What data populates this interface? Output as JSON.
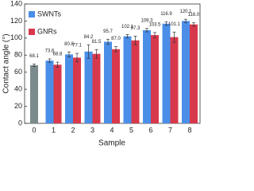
{
  "chart_data": {
    "type": "bar",
    "xlabel": "Sample",
    "ylabel": "Contact angle (°)",
    "categories": [
      "0",
      "1",
      "2",
      "3",
      "4",
      "5",
      "6",
      "7",
      "8"
    ],
    "series": [
      {
        "color": "#7b8b8b",
        "values": [
          68.1,
          null,
          null,
          null,
          null,
          null,
          null,
          null,
          null
        ],
        "errors": [
          1.5,
          null,
          null,
          null,
          null,
          null,
          null,
          null,
          null
        ]
      },
      {
        "name": "SWNTs",
        "color": "#4a8ee8",
        "values": [
          null,
          73.6,
          80.8,
          84.2,
          95.7,
          102.1,
          109.3,
          116.9,
          120.1
        ],
        "errors": [
          null,
          2,
          3,
          8,
          3,
          2,
          2,
          2,
          2
        ]
      },
      {
        "name": "GNRs",
        "color": "#d8384c",
        "values": [
          null,
          68.8,
          77.1,
          81.5,
          87.0,
          97.3,
          103.5,
          101.1,
          116.0
        ],
        "value_labels": [
          null,
          "68.8",
          "77.1",
          "81.5",
          "87.0",
          "97.3",
          "103.5",
          "101.1",
          "116.0"
        ],
        "errors": [
          null,
          3,
          5,
          5,
          3,
          5,
          3,
          6,
          2
        ]
      }
    ],
    "ylim": [
      0,
      140
    ],
    "yticks": [
      0,
      20,
      40,
      60,
      80,
      100,
      120,
      140
    ],
    "legend": "upper-left"
  }
}
